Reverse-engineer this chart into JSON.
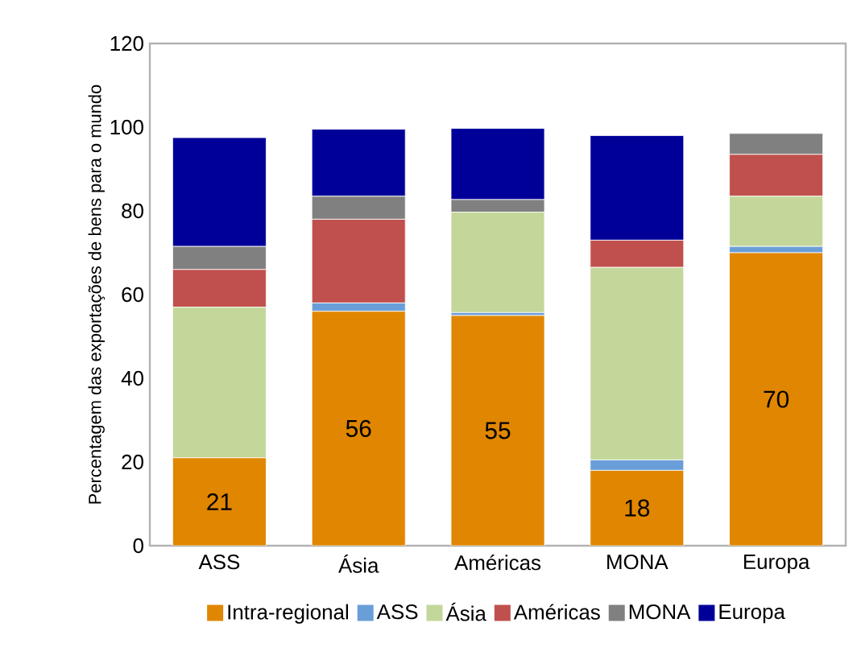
{
  "chart_data": {
    "type": "bar",
    "stacked": true,
    "ylabel": "Percentagem das exportações de bens para o mundo",
    "categories": [
      "ASS",
      "Ásia",
      "Américas",
      "MONA",
      "Europa"
    ],
    "ylim": [
      0,
      120
    ],
    "yticks": [
      0,
      20,
      40,
      60,
      80,
      100,
      120
    ],
    "legend": "bottom",
    "series": [
      {
        "name": "Intra-regional",
        "color": "#e08600",
        "values": [
          21,
          56,
          55,
          18,
          70
        ],
        "value_labels": [
          "21",
          "56",
          "55",
          "18",
          "70"
        ]
      },
      {
        "name": "ASS",
        "color": "#6a9ed8",
        "values": [
          0,
          2,
          0.7,
          2.5,
          1.5
        ]
      },
      {
        "name": "Ásia",
        "color": "#c4d79b",
        "values": [
          36,
          0,
          24,
          46,
          12
        ]
      },
      {
        "name": "Américas",
        "color": "#c0504d",
        "values": [
          9,
          20,
          0,
          6.5,
          10
        ]
      },
      {
        "name": "MONA",
        "color": "#808080",
        "values": [
          5.5,
          5.5,
          3,
          0,
          5
        ]
      },
      {
        "name": "Europa",
        "color": "#000099",
        "values": [
          26,
          16,
          17,
          25,
          0
        ]
      }
    ]
  }
}
